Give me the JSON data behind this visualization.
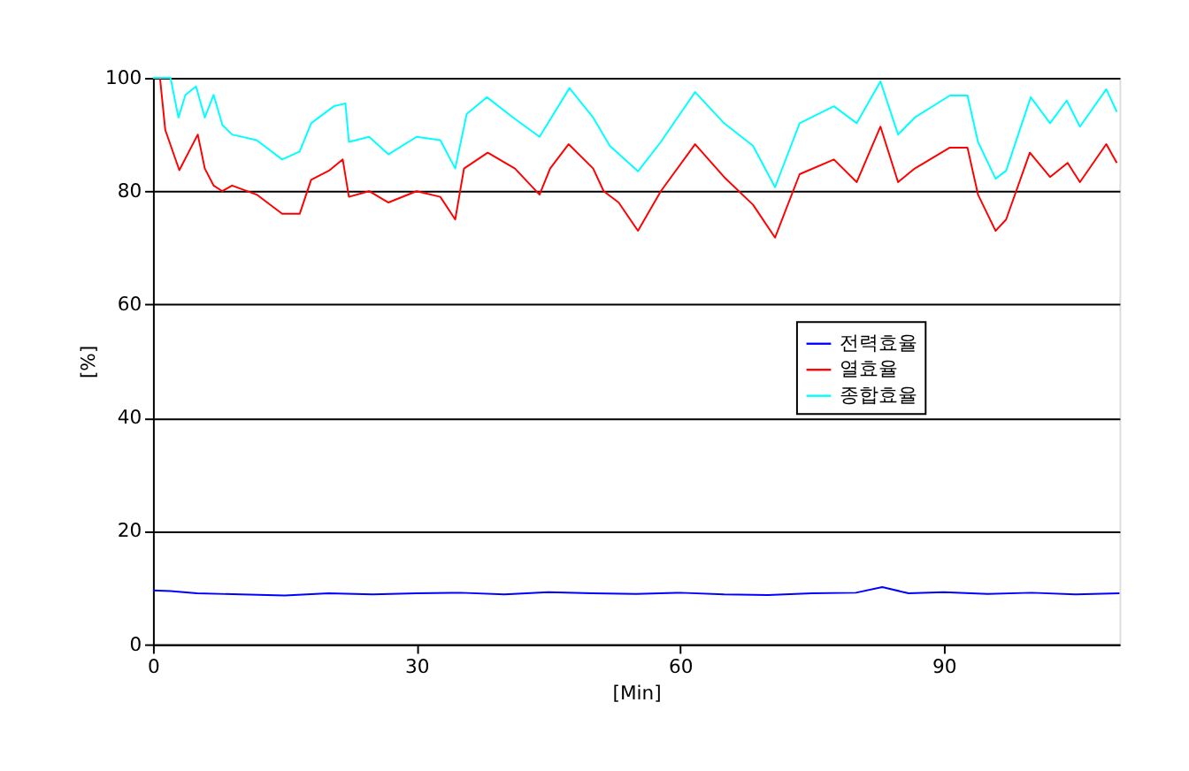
{
  "chart_data": {
    "type": "line",
    "xlabel": "[Min]",
    "ylabel": "[%]",
    "xlim": [
      0,
      110
    ],
    "xticks": [
      0,
      30,
      60,
      90
    ],
    "ylim": [
      0,
      100
    ],
    "yticks": [
      0,
      20,
      40,
      60,
      80,
      100
    ],
    "grid": "y",
    "legend": "right",
    "line_style": "solid",
    "marker": "none",
    "series": [
      {
        "name": "전력효율",
        "color": "#0000ff",
        "x": [
          0,
          2,
          5,
          10,
          15,
          20,
          25,
          30,
          35,
          40,
          45,
          50,
          55,
          60,
          65,
          70,
          75,
          80,
          83,
          86,
          90,
          95,
          100,
          105,
          110
        ],
        "values": [
          9.5,
          9.4,
          9,
          8.8,
          8.6,
          9,
          8.8,
          9,
          9.1,
          8.8,
          9.2,
          9,
          8.9,
          9.1,
          8.8,
          8.7,
          9,
          9.1,
          10.1,
          9,
          9.2,
          8.9,
          9.1,
          8.8,
          9
        ]
      },
      {
        "name": "열효율",
        "color": "#ff0000",
        "x": [
          0.8,
          1.4,
          3,
          5.1,
          5.9,
          6.9,
          7.9,
          9,
          11.8,
          14.7,
          16.7,
          18,
          20.1,
          21.6,
          22.3,
          24.6,
          26.8,
          30,
          32.7,
          34.4,
          35.4,
          38.1,
          41.2,
          44,
          45.2,
          47.3,
          50.1,
          51.3,
          53,
          55.2,
          57.8,
          61.7,
          65,
          68.3,
          70.8,
          73.6,
          77.5,
          80.1,
          82.8,
          84.8,
          86.7,
          90.7,
          92.7,
          93.9,
          95.9,
          97.1,
          99.8,
          102.1,
          104.1,
          105.5,
          108.5,
          109.7
        ],
        "values": [
          100,
          90.8,
          83.7,
          90,
          84,
          81,
          80,
          81,
          79.4,
          76,
          76,
          82,
          83.7,
          85.6,
          79,
          80,
          78,
          80,
          79,
          75,
          84,
          86.8,
          84,
          79.4,
          84,
          88.3,
          84,
          80,
          78,
          73,
          80,
          88.3,
          82.5,
          77.6,
          71.8,
          83,
          85.6,
          81.6,
          91.4,
          81.6,
          84,
          87.7,
          87.7,
          79.4,
          73,
          75,
          86.8,
          82.5,
          85,
          81.6,
          88.3,
          85
        ]
      },
      {
        "name": "종합효율",
        "color": "#00ffff",
        "x": [
          0,
          2,
          2.9,
          3.7,
          4.9,
          5.9,
          6.9,
          7.9,
          9,
          11.8,
          14.7,
          16.7,
          18,
          20.6,
          21.9,
          22.3,
          24.6,
          26.8,
          30,
          32.7,
          34.4,
          35.7,
          38,
          41,
          44,
          47.4,
          50.1,
          52,
          55.2,
          57.8,
          61.7,
          65,
          68.3,
          70.8,
          73.6,
          77.5,
          80.1,
          82.8,
          84.8,
          86.7,
          90.7,
          92.7,
          93.9,
          95.9,
          97.1,
          99.9,
          102.1,
          104,
          105.5,
          108.5,
          109.7
        ],
        "values": [
          100,
          100,
          93,
          97,
          98.5,
          93,
          97,
          91.7,
          90,
          89,
          85.6,
          87,
          92,
          95,
          95.5,
          88.7,
          89.6,
          86.5,
          89.6,
          89,
          84,
          93.6,
          96.6,
          93,
          89.6,
          98.2,
          93,
          88,
          83.5,
          88.7,
          97.5,
          92,
          88,
          80.7,
          92,
          95,
          92,
          99.4,
          90,
          93,
          96.9,
          96.9,
          88.7,
          82.2,
          83.6,
          96.6,
          92,
          96,
          91.4,
          98,
          94
        ]
      }
    ]
  }
}
